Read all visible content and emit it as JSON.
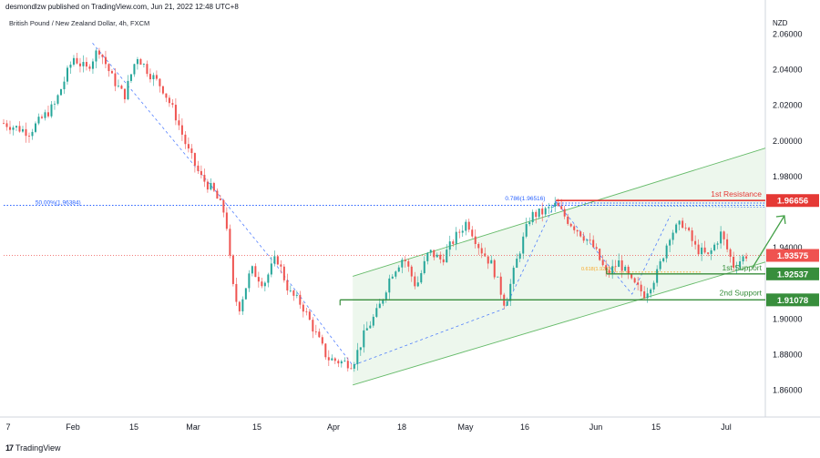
{
  "header": {
    "publisher": "desmondlzw published on TradingView.com, Jun 21, 2022 12:48 UTC+8",
    "symbol": "British Pound / New Zealand Dollar, 4h, FXCM",
    "currency": "NZD"
  },
  "footer": {
    "logo_text": "TradingView",
    "logo_mark": "17"
  },
  "colors": {
    "up": "#26a69a",
    "down": "#ef5350",
    "channel": "#66bb6a",
    "channel_fill": "#e8f5e9",
    "resistance": "#e53935",
    "support": "#388e3c",
    "fib": "#2962ff",
    "current": "#ef5350"
  },
  "chart_data": {
    "type": "candlestick",
    "title": "British Pound / New Zealand Dollar, 4h, FXCM",
    "ylabel": "NZD",
    "ylim": [
      1.845,
      2.072
    ],
    "y_ticks": [
      "2.06000",
      "2.04000",
      "2.02000",
      "2.00000",
      "1.98000",
      "1.94000",
      "1.90000",
      "1.88000",
      "1.86000"
    ],
    "x_ticks": [
      "7",
      "Feb",
      "15",
      "Mar",
      "15",
      "Apr",
      "18",
      "May",
      "16",
      "Jun",
      "15",
      "Jul"
    ],
    "price_path": [
      [
        0,
        2.01
      ],
      [
        4,
        2.005
      ],
      [
        8,
        2.02
      ],
      [
        11,
        2.047
      ],
      [
        13,
        2.04
      ],
      [
        15,
        2.052
      ],
      [
        17,
        2.036
      ],
      [
        19,
        2.025
      ],
      [
        21,
        2.048
      ],
      [
        23,
        2.038
      ],
      [
        25,
        2.03
      ],
      [
        27,
        2.015
      ],
      [
        29,
        1.995
      ],
      [
        31,
        1.98
      ],
      [
        33,
        1.972
      ],
      [
        35,
        1.958
      ],
      [
        36,
        1.92
      ],
      [
        37,
        1.905
      ],
      [
        39,
        1.928
      ],
      [
        41,
        1.92
      ],
      [
        43,
        1.935
      ],
      [
        45,
        1.915
      ],
      [
        47,
        1.908
      ],
      [
        49,
        1.893
      ],
      [
        51,
        1.878
      ],
      [
        53,
        1.876
      ],
      [
        55,
        1.875
      ],
      [
        57,
        1.893
      ],
      [
        59,
        1.905
      ],
      [
        61,
        1.925
      ],
      [
        63,
        1.935
      ],
      [
        65,
        1.918
      ],
      [
        67,
        1.938
      ],
      [
        69,
        1.933
      ],
      [
        71,
        1.945
      ],
      [
        73,
        1.955
      ],
      [
        75,
        1.94
      ],
      [
        77,
        1.93
      ],
      [
        79,
        1.908
      ],
      [
        81,
        1.935
      ],
      [
        83,
        1.958
      ],
      [
        85,
        1.96
      ],
      [
        87,
        1.964
      ],
      [
        89,
        1.955
      ],
      [
        91,
        1.948
      ],
      [
        93,
        1.94
      ],
      [
        95,
        1.925
      ],
      [
        97,
        1.932
      ],
      [
        99,
        1.92
      ],
      [
        101,
        1.914
      ],
      [
        103,
        1.926
      ],
      [
        105,
        1.948
      ],
      [
        107,
        1.954
      ],
      [
        109,
        1.94
      ],
      [
        111,
        1.935
      ],
      [
        113,
        1.948
      ],
      [
        115,
        1.93
      ],
      [
        117,
        1.936
      ]
    ],
    "current_price": 1.93575,
    "price_labels": [
      {
        "text": "1st Resistance",
        "value": 1.96656,
        "price_text": "1.96656",
        "color": "resistance"
      },
      {
        "text": "1st Support",
        "value": 1.92537,
        "price_text": "1.92537",
        "color": "support"
      },
      {
        "text": "2nd Support",
        "value": 1.91078,
        "price_text": "1.91078",
        "color": "support"
      }
    ],
    "current_price_text": "1.93575",
    "fib_levels": [
      {
        "text": "50.00%(1.96384)",
        "value": 1.96384
      },
      {
        "text": "0.786(1.96516)",
        "value": 1.96516
      },
      {
        "text": "0.618(1.92537)",
        "value": 1.92537
      }
    ],
    "channel": {
      "upper": [
        [
          55,
          1.924
        ],
        [
          120,
          1.996
        ]
      ],
      "lower": [
        [
          55,
          1.863
        ],
        [
          120,
          1.932
        ]
      ]
    }
  }
}
